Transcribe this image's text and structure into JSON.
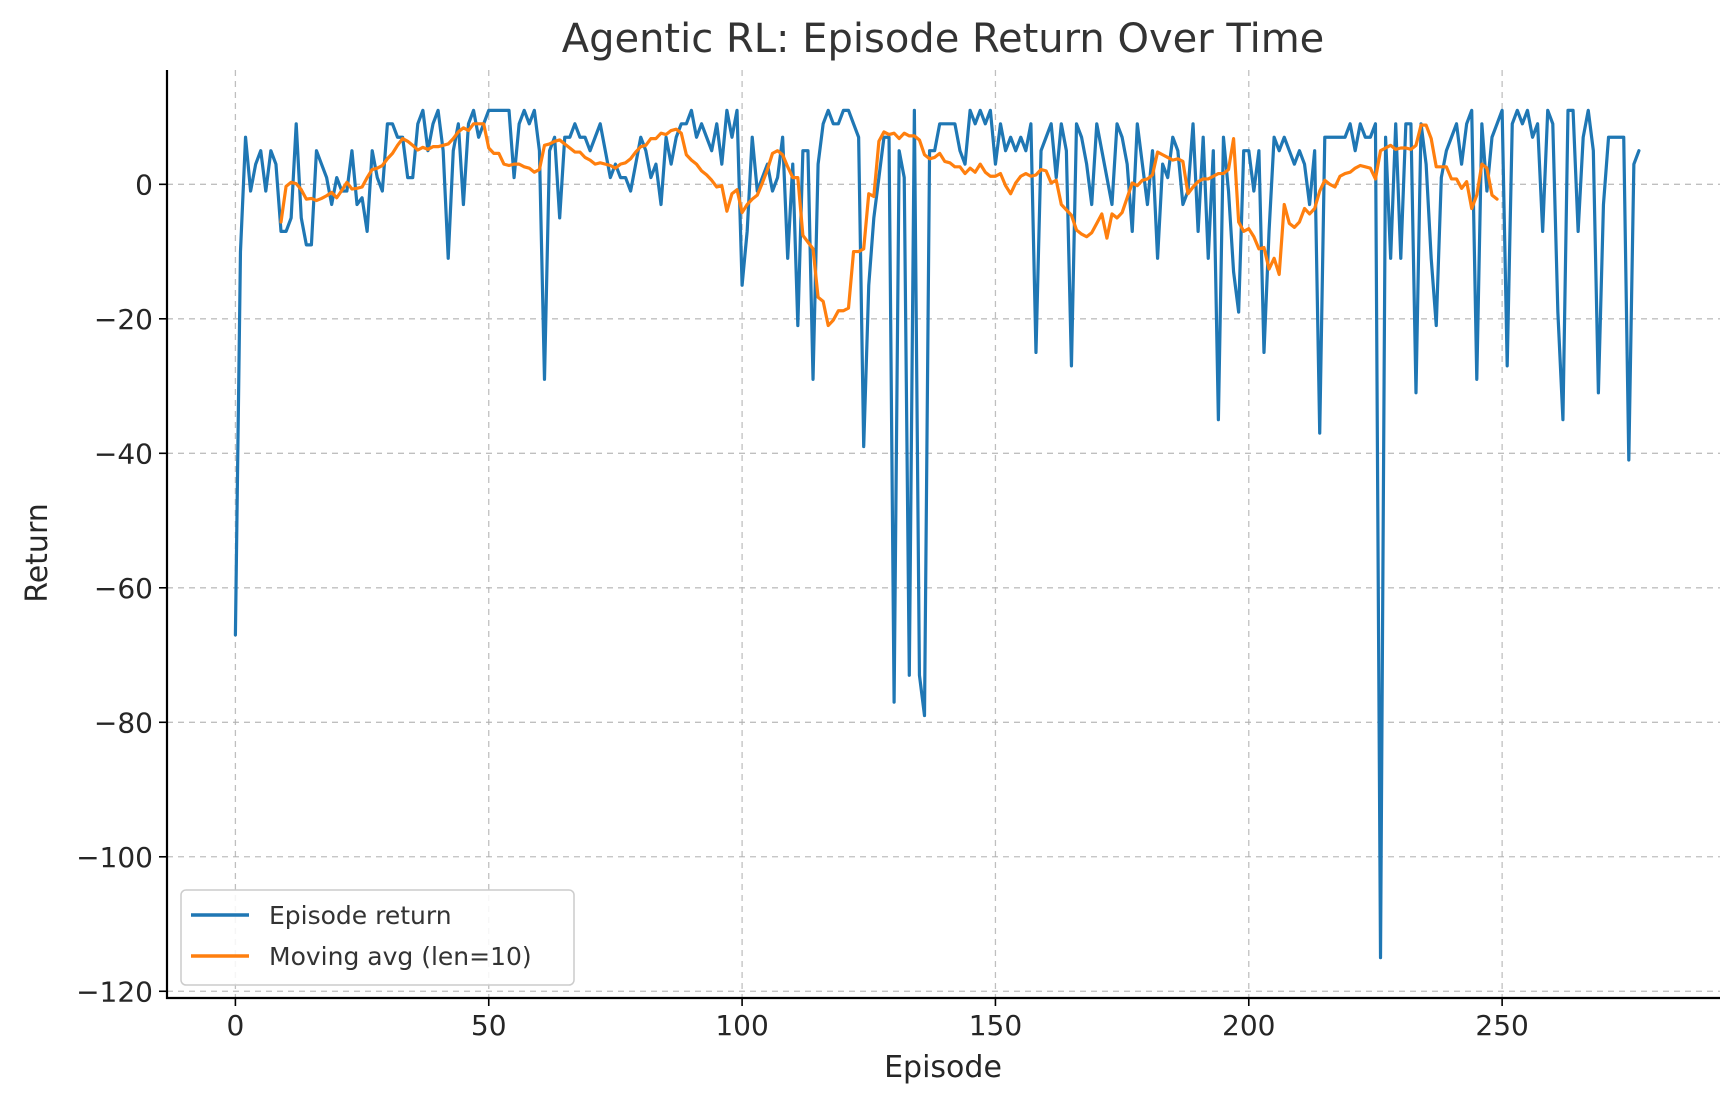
{
  "chart_data": {
    "type": "line",
    "title": "Agentic RL: Episode Return Over Time",
    "xlabel": "Episode",
    "ylabel": "Return",
    "xlim": [
      -13.5,
      293
    ],
    "ylim": [
      -121,
      17
    ],
    "xticks": [
      0,
      50,
      100,
      150,
      200,
      250
    ],
    "yticks": [
      0,
      -20,
      -40,
      -60,
      -80,
      -100,
      -120
    ],
    "xtick_labels": [
      "0",
      "50",
      "100",
      "150",
      "200",
      "250"
    ],
    "ytick_labels": [
      "0",
      "−20",
      "−40",
      "−60",
      "−80",
      "−100",
      "−120"
    ],
    "grid": true,
    "legend_position": "lower-left",
    "series": [
      {
        "name": "Episode return",
        "color": "#1f77b4",
        "x_start": 0,
        "values": [
          -67,
          -10,
          7,
          -1,
          3,
          5,
          -1,
          5,
          3,
          -7,
          -7,
          -5,
          9,
          -5,
          -9,
          -9,
          5,
          3,
          1,
          -3,
          1,
          -1,
          -1,
          5,
          -3,
          -2,
          -7,
          5,
          1,
          -1,
          9,
          9,
          7,
          7,
          1,
          1,
          9,
          11,
          5,
          9,
          11,
          5,
          -11,
          5,
          9,
          -3,
          9,
          11,
          7,
          9,
          11,
          11,
          11,
          11,
          11,
          1,
          9,
          11,
          9,
          11,
          5,
          -29,
          5,
          7,
          -5,
          7,
          7,
          9,
          7,
          7,
          5,
          7,
          9,
          5,
          1,
          3,
          1,
          1,
          -1,
          3,
          7,
          5,
          1,
          3,
          -3,
          7,
          3,
          7,
          9,
          9,
          11,
          7,
          9,
          7,
          5,
          9,
          3,
          11,
          7,
          11,
          -15,
          -7,
          7,
          -1,
          1,
          3,
          -1,
          1,
          7,
          -11,
          3,
          -21,
          5,
          5,
          -29,
          3,
          9,
          11,
          9,
          9,
          11,
          11,
          9,
          7,
          -39,
          -15,
          -5,
          1,
          7,
          7,
          -77,
          5,
          1,
          -73,
          11,
          -73,
          -79,
          5,
          5,
          9,
          9,
          9,
          9,
          5,
          3,
          11,
          9,
          11,
          9,
          11,
          3,
          9,
          5,
          7,
          5,
          7,
          5,
          9,
          -25,
          5,
          7,
          9,
          1,
          9,
          5,
          -27,
          9,
          7,
          3,
          -3,
          9,
          5,
          1,
          -3,
          9,
          7,
          3,
          -7,
          9,
          3,
          -3,
          5,
          -11,
          3,
          1,
          7,
          5,
          -3,
          -1,
          9,
          -7,
          7,
          -11,
          5,
          -35,
          7,
          -1,
          -13,
          -19,
          5,
          5,
          -1,
          5,
          -25,
          -7,
          7,
          5,
          7,
          5,
          3,
          5,
          3,
          -3,
          5,
          -37,
          7,
          7,
          7,
          7,
          7,
          9,
          5,
          9,
          7,
          7,
          9,
          -115,
          7,
          -11,
          9,
          -11,
          9,
          9,
          -31,
          9,
          3,
          -11,
          -21,
          1,
          5,
          7,
          9,
          3,
          9,
          11,
          -29,
          9,
          -1,
          7,
          9,
          11,
          -27,
          9,
          11,
          9,
          11,
          7,
          9,
          -7,
          11,
          9,
          -19,
          -35,
          11,
          11,
          -7,
          7,
          11,
          5,
          -31,
          -3,
          7,
          7,
          7,
          7,
          -41,
          3,
          5
        ]
      },
      {
        "name": "Moving avg (len=10)",
        "color": "#ff7f0e",
        "x_start": 9,
        "values": [
          -5.6,
          -0.3,
          0.3,
          0.1,
          -0.8,
          -2.2,
          -2.1,
          -2.4,
          -2.1,
          -1.7,
          -1.2,
          -2.0,
          -0.9,
          0.3,
          -0.7,
          -0.6,
          -0.4,
          1.0,
          2.2,
          2.4,
          2.8,
          3.8,
          4.6,
          5.8,
          6.8,
          6.4,
          5.8,
          5.1,
          5.5,
          5.2,
          5.6,
          5.6,
          5.8,
          6.0,
          6.8,
          7.8,
          8.4,
          8.0,
          9.0,
          9.0,
          9.0,
          5.4,
          4.6,
          4.6,
          3.0,
          2.8,
          3.0,
          3.0,
          2.6,
          2.4,
          1.8,
          2.2,
          5.8,
          6.0,
          6.4,
          6.6,
          6.0,
          5.4,
          4.8,
          4.8,
          4.0,
          3.6,
          3.0,
          3.2,
          3.0,
          2.8,
          2.4,
          3.0,
          3.2,
          3.8,
          4.8,
          5.6,
          5.8,
          6.8,
          6.8,
          7.6,
          7.4,
          8.0,
          8.2,
          7.6,
          4.4,
          3.6,
          3.0,
          2.0,
          1.4,
          0.6,
          -0.4,
          -0.2,
          -4.0,
          -1.4,
          -0.8,
          -4.2,
          -3.0,
          -2.2,
          -1.6,
          0.2,
          2.2,
          4.6,
          5.0,
          4.4,
          2.6,
          1.0,
          1.0,
          -7.6,
          -8.6,
          -9.6,
          -16.8,
          -17.4,
          -21.0,
          -20.2,
          -18.8,
          -18.8,
          -18.4,
          -10.0,
          -10.0,
          -9.6,
          -1.4,
          -1.8,
          6.4,
          7.8,
          7.4,
          7.6,
          6.8,
          7.6,
          7.2,
          7.2,
          6.6,
          4.4,
          3.8,
          4.0,
          4.6,
          3.4,
          3.2,
          2.6,
          2.6,
          1.6,
          2.4,
          1.8,
          3.0,
          1.8,
          1.2,
          1.2,
          1.6,
          -0.2,
          -1.4,
          0.2,
          1.2,
          1.6,
          1.2,
          1.4,
          2.2,
          2.0,
          0.2,
          0.6,
          -3.0,
          -3.8,
          -4.6,
          -6.8,
          -7.4,
          -7.8,
          -7.2,
          -5.8,
          -4.4,
          -8.0,
          -4.4,
          -5.0,
          -4.2,
          -2.0,
          0.2,
          -0.2,
          0.6,
          0.8,
          1.4,
          4.8,
          4.4,
          4.0,
          3.6,
          3.8,
          3.4,
          -1.4,
          -0.4,
          0.4,
          0.8,
          0.8,
          1.2,
          1.6,
          1.6,
          2.2,
          6.8,
          -5.6,
          -7.0,
          -6.6,
          -7.8,
          -9.6,
          -9.4,
          -12.6,
          -11.0,
          -13.4,
          -3.0,
          -5.8,
          -6.4,
          -5.6,
          -3.6,
          -4.4,
          -3.6,
          -1.0,
          0.6,
          0.0,
          -0.4,
          1.2,
          1.6,
          1.8,
          2.4,
          2.8,
          2.6,
          2.4,
          0.8,
          5.0,
          5.4,
          5.8,
          5.2,
          5.4,
          5.4,
          5.2,
          5.8,
          8.8,
          8.8,
          6.8,
          2.6,
          2.6,
          2.6,
          0.8,
          0.8,
          -0.6,
          0.4,
          -3.6,
          -1.6,
          3.0,
          2.4,
          -1.6,
          -2.2
        ]
      }
    ]
  }
}
